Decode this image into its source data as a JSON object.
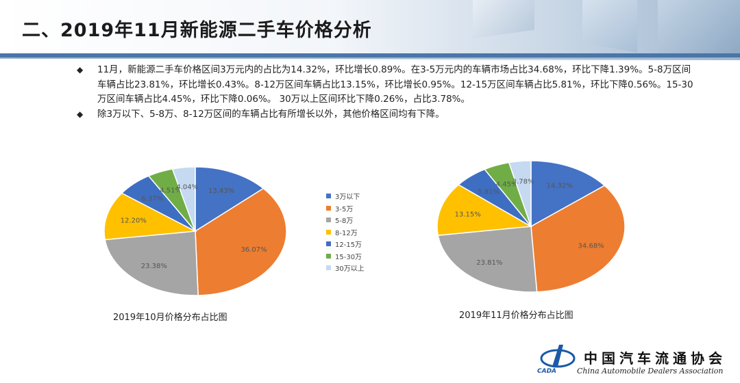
{
  "header": {
    "title": "二、2019年11月新能源二手车价格分析"
  },
  "bullets": [
    "11月，新能源二手车价格区间3万元内的占比为14.32%，环比增长0.89%。在3-5万元内的车辆市场占比34.68%，环比下降1.39%。5-8万区间车辆占比23.81%，环比增长0.43%。8-12万区间车辆占比13.15%，环比增长0.95%。12-15万区间车辆占比5.81%，环比下降0.56%。15-30万区间车辆占比4.45%，环比下降0.06%。 30万以上区间环比下降0.26%，占比3.78%。",
    "除3万以下、5-8万、8-12万区间的车辆占比有所增长以外，其他价格区间均有下降。"
  ],
  "colors": [
    "#4472c4",
    "#ed7d31",
    "#a5a5a5",
    "#ffc000",
    "#3e6ec2",
    "#70ad47",
    "#c5d9f1"
  ],
  "chart_data": [
    {
      "type": "pie",
      "caption": "2019年10月价格分布占比图",
      "categories": [
        "3万以下",
        "3-5万",
        "5-8万",
        "8-12万",
        "12-15万",
        "15-30万",
        "30万以上"
      ],
      "values": [
        13.43,
        36.07,
        23.38,
        12.2,
        6.37,
        4.51,
        4.04
      ],
      "labels": [
        "13.43%",
        "36.07%",
        "23.38%",
        "12.20%",
        "6.37%",
        "4.51%",
        "4.04%"
      ]
    },
    {
      "type": "pie",
      "caption": "2019年11月价格分布占比图",
      "categories": [
        "3万以下",
        "3-5万",
        "5-8万",
        "8-12万",
        "12-15万",
        "15-30万",
        "30万以上"
      ],
      "values": [
        14.32,
        34.68,
        23.81,
        13.15,
        5.81,
        4.45,
        3.78
      ],
      "labels": [
        "14.32%",
        "34.68%",
        "23.81%",
        "13.15%",
        "5.81%",
        "4.45%",
        "3.78%"
      ]
    }
  ],
  "legend": [
    "3万以下",
    "3-5万",
    "5-8万",
    "8-12万",
    "12-15万",
    "15-30万",
    "30万以上"
  ],
  "logo": {
    "name": "中国汽车流通协会",
    "english": "China Automobile Dealers Association",
    "abbr": "CADA"
  }
}
